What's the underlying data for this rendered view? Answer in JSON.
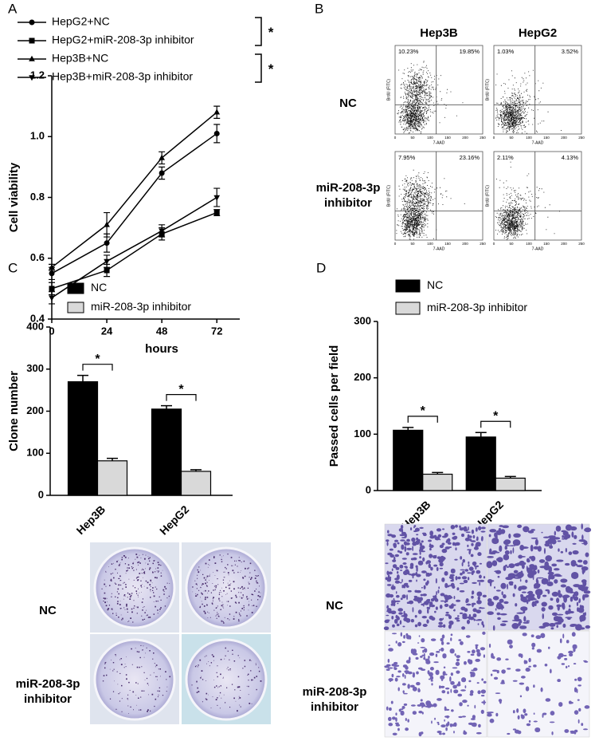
{
  "panel_labels": [
    "A",
    "B",
    "C",
    "D"
  ],
  "chart_data": [
    {
      "type": "line",
      "xlabel": "hours",
      "ylabel": "Cell viability",
      "x": [
        0,
        24,
        48,
        72
      ],
      "xlim": [
        0,
        82
      ],
      "xticks": [
        0,
        24,
        48,
        72
      ],
      "ylim": [
        0.4,
        1.2
      ],
      "yticks": [
        0.4,
        0.6,
        0.8,
        {
          "value": 1,
          "label": "1.0"
        },
        1.2
      ],
      "series": [
        {
          "name": "HepG2+NC",
          "color": "#000000",
          "marker": "circle",
          "values": [
            0.55,
            0.65,
            0.88,
            1.01
          ],
          "errors": [
            0.02,
            0.03,
            0.02,
            0.03
          ]
        },
        {
          "name": "HepG2+miR-208-3p inhibitor",
          "color": "#000000",
          "marker": "square",
          "values": [
            0.5,
            0.56,
            0.68,
            0.75
          ],
          "errors": [
            0.02,
            0.02,
            0.02,
            0.01
          ]
        },
        {
          "name": "Hep3B+NC",
          "color": "#000000",
          "marker": "triangle-up",
          "values": [
            0.57,
            0.71,
            0.93,
            1.08
          ],
          "errors": [
            0.01,
            0.04,
            0.02,
            0.02
          ]
        },
        {
          "name": "Hep3B+miR-208-3p inhibitor",
          "color": "#000000",
          "marker": "triangle-down",
          "values": [
            0.47,
            0.59,
            0.69,
            0.8
          ],
          "errors": [
            0.02,
            0.02,
            0.02,
            0.03
          ]
        }
      ],
      "annotations": [
        "*",
        "*"
      ]
    },
    {
      "type": "bar",
      "ylabel": "Clone number",
      "categories": [
        "Hep3B",
        "HepG2"
      ],
      "ylim": [
        0,
        400
      ],
      "yticks": [
        0,
        100,
        200,
        300,
        400
      ],
      "series": [
        {
          "name": "NC",
          "color": "#000000",
          "values": [
            270,
            205
          ],
          "errors": [
            15,
            8
          ]
        },
        {
          "name": "miR-208-3p inhibitor",
          "color": "#d9d9d9",
          "values": [
            82,
            57
          ],
          "errors": [
            6,
            4
          ]
        }
      ],
      "annotations": [
        "*",
        "*"
      ]
    },
    {
      "type": "bar",
      "ylabel": "Passed cells per field",
      "categories": [
        "Hep3B",
        "HepG2"
      ],
      "ylim": [
        0,
        300
      ],
      "yticks": [
        0,
        100,
        200,
        300
      ],
      "series": [
        {
          "name": "NC",
          "color": "#000000",
          "values": [
            107,
            95
          ],
          "errors": [
            5,
            8
          ]
        },
        {
          "name": "miR-208-3p inhibitor",
          "color": "#d9d9d9",
          "values": [
            29,
            22
          ],
          "errors": [
            3,
            3
          ]
        }
      ],
      "annotations": [
        "*",
        "*"
      ]
    }
  ],
  "flow": {
    "columns": [
      "Hep3B",
      "HepG2"
    ],
    "rows": [
      "NC",
      "miR-208-3p inhibitor"
    ],
    "quadrants": [
      [
        [
          "10.23%",
          "19.85%"
        ],
        [
          "1.03%",
          "3.52%"
        ]
      ],
      [
        [
          "7.95%",
          "23.16%"
        ],
        [
          "2.11%",
          "4.13%"
        ]
      ]
    ],
    "x_label": "7-AAD",
    "y_label": "BrdU (FITC)",
    "x_ticks": [
      0,
      50,
      100,
      150,
      200,
      250
    ]
  },
  "colony": {
    "rows": [
      "NC",
      "miR-208-3p inhibitor"
    ]
  },
  "transwell": {
    "rows": [
      "NC",
      "miR-208-3p inhibitor"
    ]
  }
}
